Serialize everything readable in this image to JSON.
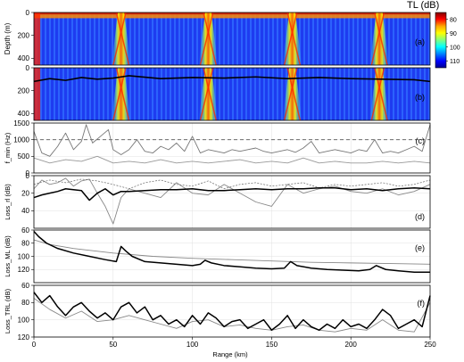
{
  "colorbar": {
    "title": "TL (dB)",
    "ticks": [
      80,
      90,
      100,
      110
    ],
    "range": [
      75,
      115
    ],
    "colormap": [
      "#7f0000",
      "#ff0000",
      "#ffaa00",
      "#ffff00",
      "#80ff80",
      "#00ffff",
      "#0080ff",
      "#0000ff",
      "#00008f"
    ]
  },
  "x_axis": {
    "label": "Range (km)",
    "range": [
      0,
      250
    ],
    "ticks": [
      0,
      50,
      100,
      150,
      200,
      250
    ]
  },
  "chart_data": [
    {
      "type": "heatmap",
      "panel_label": "(a)",
      "ylabel": "Depth (m)",
      "ylim": [
        0,
        460
      ],
      "yticks": [
        0,
        200,
        400
      ],
      "y_inverted": true,
      "xlim": [
        0,
        250
      ],
      "surface_layer_depth_m": 50,
      "convergence_zones_km": [
        55,
        110,
        163,
        218
      ],
      "typical_TL_dB": {
        "background": 108,
        "zone_peak": 85,
        "near_source": 80
      }
    },
    {
      "type": "heatmap",
      "panel_label": "(b)",
      "ylim": [
        0,
        460
      ],
      "yticks": [
        0,
        200,
        400
      ],
      "y_inverted": true,
      "xlim": [
        0,
        250
      ],
      "convergence_zones_km": [
        55,
        110,
        163,
        218
      ],
      "boundary_line": {
        "x": [
          0,
          10,
          20,
          30,
          40,
          50,
          60,
          80,
          100,
          120,
          140,
          160,
          180,
          200,
          220,
          240,
          250
        ],
        "y": [
          120,
          95,
          110,
          85,
          100,
          90,
          70,
          95,
          85,
          90,
          80,
          95,
          85,
          95,
          100,
          105,
          120
        ]
      }
    },
    {
      "type": "line",
      "panel_label": "(c)",
      "ylabel": "f_min (Hz)",
      "ylim": [
        0,
        1500
      ],
      "yticks": [
        0,
        500,
        1000,
        1500
      ],
      "xlim": [
        0,
        250
      ],
      "reference_line": 1000,
      "series": [
        {
          "x": [
            0,
            5,
            10,
            15,
            20,
            25,
            30,
            33,
            37,
            42,
            47,
            50,
            55,
            60,
            65,
            70,
            75,
            80,
            85,
            90,
            95,
            100,
            105,
            110,
            115,
            120,
            125,
            130,
            135,
            140,
            145,
            150,
            155,
            160,
            165,
            170,
            175,
            180,
            185,
            190,
            195,
            200,
            205,
            210,
            215,
            220,
            225,
            230,
            235,
            240,
            245,
            250
          ],
          "y": [
            1250,
            600,
            500,
            800,
            1200,
            700,
            950,
            1450,
            900,
            1100,
            1300,
            700,
            550,
            700,
            1000,
            650,
            600,
            800,
            700,
            900,
            650,
            1100,
            600,
            700,
            650,
            600,
            700,
            650,
            700,
            750,
            650,
            600,
            650,
            700,
            620,
            750,
            950,
            600,
            650,
            700,
            650,
            600,
            700,
            650,
            1000,
            600,
            650,
            600,
            700,
            800,
            650,
            1450
          ]
        },
        {
          "x": [
            0,
            10,
            20,
            30,
            40,
            50,
            60,
            70,
            80,
            90,
            100,
            110,
            120,
            130,
            140,
            150,
            160,
            170,
            180,
            190,
            200,
            210,
            220,
            230,
            240,
            250
          ],
          "y": [
            450,
            300,
            400,
            350,
            500,
            300,
            350,
            300,
            400,
            300,
            350,
            300,
            350,
            400,
            300,
            350,
            300,
            450,
            300,
            350,
            300,
            300,
            350,
            300,
            350,
            300
          ]
        }
      ]
    },
    {
      "type": "line",
      "panel_label": "(d)",
      "ylabel": "Loss_rl (dB)",
      "ylim": [
        0,
        60
      ],
      "yticks": [
        0,
        20,
        40
      ],
      "y_inverted": true,
      "xlim": [
        0,
        250
      ],
      "series": [
        {
          "x": [
            0,
            5,
            10,
            15,
            20,
            25,
            30,
            35,
            40,
            45,
            50,
            55,
            60,
            70,
            80,
            90,
            100,
            110,
            120,
            130,
            140,
            150,
            160,
            170,
            180,
            190,
            200,
            210,
            220,
            230,
            240,
            250
          ],
          "y": [
            25,
            22,
            20,
            18,
            15,
            16,
            17,
            28,
            20,
            15,
            22,
            18,
            18,
            17,
            16,
            16,
            15,
            17,
            17,
            16,
            15,
            16,
            15,
            15,
            14,
            14,
            16,
            15,
            17,
            15,
            14,
            15
          ]
        },
        {
          "x": [
            0,
            5,
            10,
            15,
            20,
            25,
            30,
            35,
            40,
            45,
            50,
            55,
            60,
            70,
            80,
            90,
            100,
            110,
            120,
            130,
            140,
            150,
            160,
            170,
            180,
            190,
            200,
            210,
            220,
            230,
            240,
            250
          ],
          "y": [
            15,
            5,
            10,
            8,
            3,
            12,
            6,
            4,
            20,
            35,
            55,
            25,
            15,
            20,
            25,
            8,
            20,
            22,
            10,
            20,
            30,
            35,
            10,
            20,
            15,
            12,
            18,
            20,
            15,
            22,
            18,
            10
          ]
        },
        {
          "x": [
            0,
            10,
            20,
            30,
            40,
            50,
            60,
            70,
            80,
            90,
            100,
            110,
            120,
            130,
            140,
            150,
            160,
            170,
            180,
            190,
            200,
            210,
            220,
            230,
            240,
            250
          ],
          "y": [
            10,
            5,
            8,
            4,
            6,
            10,
            15,
            8,
            5,
            10,
            12,
            6,
            15,
            10,
            8,
            12,
            10,
            8,
            14,
            10,
            12,
            10,
            8,
            12,
            10,
            5
          ]
        }
      ]
    },
    {
      "type": "line",
      "panel_label": "(e)",
      "ylabel": "Loss_ML (dB)",
      "ylim": [
        60,
        140
      ],
      "yticks": [
        60,
        80,
        100,
        120
      ],
      "y_inverted": true,
      "xlim": [
        0,
        250
      ],
      "series": [
        {
          "x": [
            0,
            3,
            8,
            15,
            25,
            35,
            45,
            52,
            55,
            58,
            62,
            70,
            80,
            90,
            100,
            105,
            108,
            112,
            120,
            130,
            140,
            150,
            158,
            162,
            166,
            175,
            185,
            195,
            205,
            212,
            216,
            222,
            230,
            240,
            250
          ],
          "y": [
            62,
            70,
            80,
            88,
            95,
            100,
            105,
            108,
            85,
            92,
            100,
            108,
            110,
            112,
            114,
            112,
            106,
            110,
            114,
            116,
            118,
            119,
            118,
            108,
            114,
            118,
            120,
            121,
            122,
            120,
            114,
            120,
            122,
            124,
            124
          ]
        },
        {
          "x": [
            0,
            10,
            25,
            50,
            75,
            100,
            125,
            150,
            175,
            200,
            225,
            250
          ],
          "y": [
            75,
            82,
            88,
            95,
            100,
            103,
            105,
            107,
            109,
            110,
            111,
            112
          ]
        }
      ]
    },
    {
      "type": "line",
      "panel_label": "(f)",
      "ylabel": "Loss_TRL (dB)",
      "ylim": [
        60,
        120
      ],
      "yticks": [
        60,
        80,
        100,
        120
      ],
      "y_inverted": true,
      "xlim": [
        0,
        250
      ],
      "series": [
        {
          "x": [
            0,
            5,
            10,
            15,
            20,
            25,
            30,
            35,
            40,
            45,
            50,
            55,
            60,
            65,
            70,
            75,
            80,
            85,
            90,
            95,
            100,
            105,
            110,
            115,
            120,
            125,
            130,
            135,
            140,
            145,
            150,
            155,
            160,
            165,
            170,
            175,
            180,
            185,
            190,
            195,
            200,
            205,
            210,
            215,
            220,
            225,
            230,
            235,
            240,
            245,
            250
          ],
          "y": [
            68,
            80,
            72,
            85,
            95,
            85,
            80,
            90,
            98,
            92,
            100,
            85,
            80,
            92,
            85,
            100,
            95,
            105,
            100,
            108,
            95,
            105,
            92,
            98,
            108,
            102,
            100,
            110,
            105,
            100,
            112,
            105,
            95,
            110,
            100,
            108,
            112,
            105,
            110,
            100,
            108,
            105,
            110,
            100,
            88,
            95,
            110,
            105,
            100,
            108,
            72
          ]
        },
        {
          "x": [
            0,
            10,
            20,
            30,
            40,
            50,
            60,
            70,
            80,
            90,
            100,
            110,
            120,
            130,
            140,
            150,
            160,
            170,
            180,
            190,
            200,
            210,
            220,
            230,
            240,
            250
          ],
          "y": [
            75,
            88,
            98,
            90,
            102,
            100,
            95,
            100,
            105,
            110,
            102,
            100,
            108,
            106,
            110,
            112,
            108,
            106,
            112,
            114,
            110,
            112,
            100,
            112,
            114,
            80
          ]
        }
      ]
    }
  ]
}
